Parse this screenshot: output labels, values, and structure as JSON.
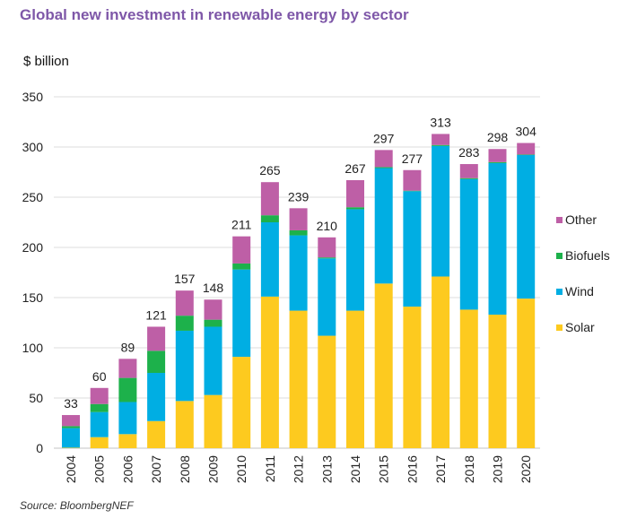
{
  "chart_data": {
    "type": "bar",
    "stacked": true,
    "title": "Global new investment in renewable energy by sector",
    "ylabel": "$ billion",
    "source": "Source: BloombergNEF",
    "ylim": [
      0,
      350
    ],
    "yticks": [
      0,
      50,
      100,
      150,
      200,
      250,
      300,
      350
    ],
    "grid": true,
    "legend_position": "right",
    "categories": [
      "2004",
      "2005",
      "2006",
      "2007",
      "2008",
      "2009",
      "2010",
      "2011",
      "2012",
      "2013",
      "2014",
      "2015",
      "2016",
      "2017",
      "2018",
      "2019",
      "2020"
    ],
    "totals": [
      33,
      60,
      89,
      121,
      157,
      148,
      211,
      265,
      239,
      210,
      267,
      297,
      277,
      313,
      283,
      298,
      304
    ],
    "series": [
      {
        "name": "Solar",
        "color": "#FDCA1F",
        "values": [
          0.5,
          11,
          14,
          27,
          47,
          53,
          91,
          151,
          137,
          112,
          137,
          164,
          141,
          171,
          138,
          133,
          149
        ]
      },
      {
        "name": "Wind",
        "color": "#00AEE3",
        "values": [
          19.5,
          25,
          32,
          48,
          70,
          68,
          87,
          74,
          75,
          77,
          101,
          115,
          115,
          130,
          130,
          151,
          143
        ]
      },
      {
        "name": "Biofuels",
        "color": "#1DB14B",
        "values": [
          2,
          8,
          24,
          22,
          15,
          7,
          6,
          7,
          5,
          1,
          2,
          1,
          0.5,
          1,
          1,
          1,
          0.5
        ]
      },
      {
        "name": "Other",
        "color": "#BE5FA6",
        "values": [
          11,
          16,
          19,
          24,
          25,
          20,
          27,
          33,
          22,
          20,
          27,
          17,
          20.5,
          11,
          14,
          13,
          11.5
        ]
      }
    ],
    "legend_order": [
      "Other",
      "Biofuels",
      "Wind",
      "Solar"
    ]
  },
  "colors": {
    "title": "#7E57A8"
  }
}
